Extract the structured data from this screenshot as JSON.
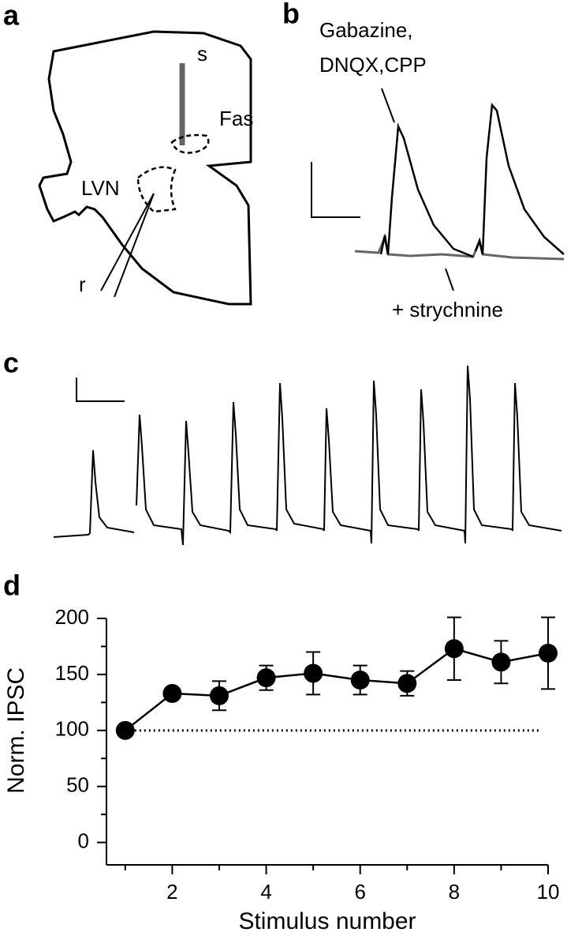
{
  "panels": {
    "a": {
      "label": "a",
      "texts": [
        "s",
        "Fas",
        "LVN",
        "r"
      ]
    },
    "b": {
      "label": "b",
      "texts": [
        "Gabazine,",
        "DNQX,CPP",
        "+ strychnine"
      ]
    },
    "c": {
      "label": "c"
    },
    "d": {
      "label": "d"
    }
  },
  "chart_data": {
    "type": "line",
    "x_label": "Stimulus number",
    "y_label": "Norm. IPSC",
    "x": [
      1,
      2,
      3,
      4,
      5,
      6,
      7,
      8,
      9,
      10
    ],
    "series": [
      {
        "color": "#000000",
        "values": [
          100,
          133,
          131,
          147,
          151,
          145,
          142,
          173,
          161,
          169
        ],
        "errors": [
          0,
          4,
          13,
          11,
          19,
          13,
          11,
          28,
          19,
          32
        ]
      }
    ],
    "xlim": [
      0.6,
      10
    ],
    "xticks": [
      2,
      4,
      6,
      8,
      10
    ],
    "xticks_minor": [
      1,
      3,
      5,
      7,
      9
    ],
    "ylim": [
      -20,
      200
    ],
    "yticks": [
      0,
      50,
      100,
      150,
      200
    ],
    "yticks_minor": [
      25,
      75,
      125,
      175
    ],
    "reference_line": 100
  }
}
